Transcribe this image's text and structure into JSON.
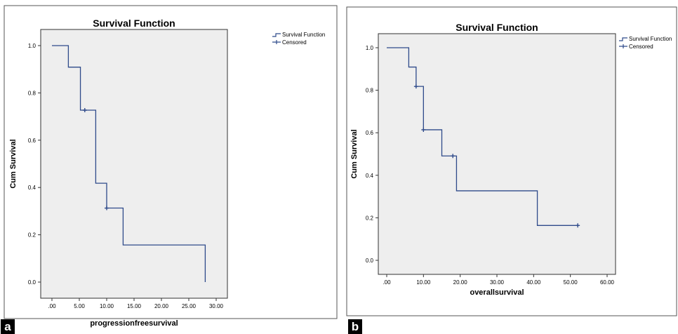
{
  "chart_data": [
    {
      "type": "line",
      "step": true,
      "title": "Survival Function",
      "xlabel": "progressionfreesurvival",
      "ylabel": "Cum Survival",
      "xlim": [
        0,
        30
      ],
      "ylim": [
        0,
        1.0
      ],
      "x_ticks": [
        ".00",
        "5.00",
        "10.00",
        "15.00",
        "20.00",
        "25.00",
        "30.00"
      ],
      "y_ticks": [
        "0.0",
        "0.2",
        "0.4",
        "0.6",
        "0.8",
        "1.0"
      ],
      "legend": [
        "Survival Function",
        "Censored"
      ],
      "legend_position": "top-right",
      "series": [
        {
          "name": "Survival Function",
          "x": [
            0,
            3,
            5.2,
            8,
            10,
            13,
            28,
            28
          ],
          "y": [
            1.0,
            0.909,
            0.727,
            0.418,
            0.313,
            0.157,
            0.157,
            0.0
          ]
        },
        {
          "name": "Censored",
          "x": [
            6,
            10
          ],
          "y": [
            0.727,
            0.313
          ]
        }
      ],
      "panel_label": "a",
      "colors": {
        "line": "#2e4a8a",
        "plot_bg": "#eeeeee"
      }
    },
    {
      "type": "line",
      "step": true,
      "title": "Survival Function",
      "xlabel": "overallsurvival",
      "ylabel": "Cum Survival",
      "xlim": [
        0,
        60
      ],
      "ylim": [
        0,
        1.0
      ],
      "x_ticks": [
        ".00",
        "10.00",
        "20.00",
        "30.00",
        "40.00",
        "50.00",
        "60.00"
      ],
      "y_ticks": [
        "0.0",
        "0.2",
        "0.4",
        "0.6",
        "0.8",
        "1.0"
      ],
      "legend": [
        "Survival Function",
        "Censored"
      ],
      "legend_position": "top-right",
      "series": [
        {
          "name": "Survival Function",
          "x": [
            0,
            6,
            8,
            10,
            15,
            19,
            41,
            52
          ],
          "y": [
            1.0,
            0.909,
            0.818,
            0.614,
            0.491,
            0.327,
            0.164,
            0.164
          ]
        },
        {
          "name": "Censored",
          "x": [
            8,
            10,
            18,
            52
          ],
          "y": [
            0.818,
            0.614,
            0.491,
            0.164
          ]
        }
      ],
      "panel_label": "b",
      "colors": {
        "line": "#2e4a8a",
        "plot_bg": "#eeeeee"
      }
    }
  ]
}
